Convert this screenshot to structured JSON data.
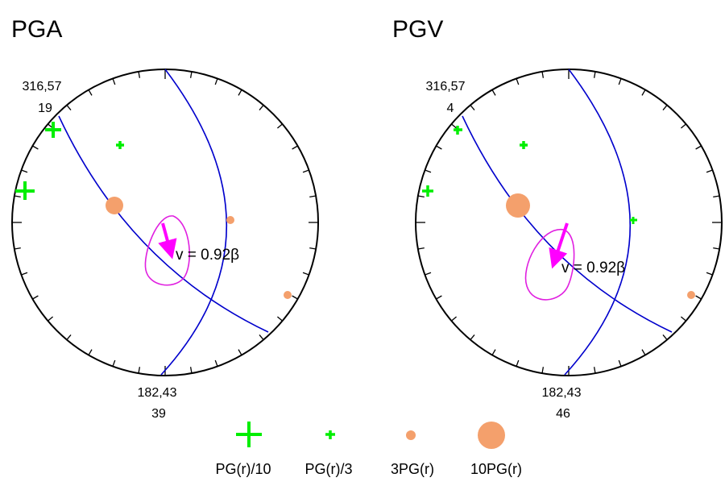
{
  "panels": [
    {
      "title": "PGA",
      "plane1_label": "316,57",
      "plane1_value": "19",
      "plane2_label": "182,43",
      "plane2_value": "39",
      "velocity_label": "v = 0.92β"
    },
    {
      "title": "PGV",
      "plane1_label": "316,57",
      "plane1_value": "4",
      "plane2_label": "182,43",
      "plane2_value": "46",
      "velocity_label": "v = 0.92β"
    }
  ],
  "legend": [
    {
      "label": "PG(r)/10",
      "symbol": "large-plus"
    },
    {
      "label": "PG(r)/3",
      "symbol": "small-plus"
    },
    {
      "label": "3PG(r)",
      "symbol": "small-circle"
    },
    {
      "label": "10PG(r)",
      "symbol": "large-circle"
    }
  ],
  "colors": {
    "plus": "#00ee00",
    "circle": "#f4a06c",
    "plane": "#0000cc",
    "contour": "#e020e0",
    "arrow": "#ff00ff",
    "outline": "#000000"
  }
}
